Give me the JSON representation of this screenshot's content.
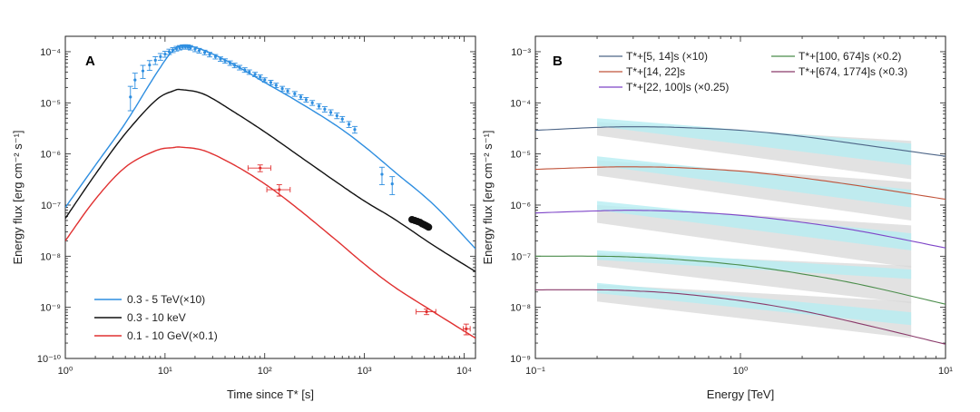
{
  "figure": {
    "panels": [
      "A",
      "B"
    ]
  },
  "chart_data": [
    {
      "type": "line",
      "panel_label": "A",
      "xlabel": "Time since T* [s]",
      "ylabel": "Energy flux [erg cm⁻² s⁻¹]",
      "x_scale": "log",
      "y_scale": "log",
      "xlim": [
        1,
        13000
      ],
      "ylim": [
        1e-10,
        0.0002
      ],
      "x_ticks": [
        {
          "v": 1,
          "label": "10⁰"
        },
        {
          "v": 10,
          "label": "10¹"
        },
        {
          "v": 100,
          "label": "10²"
        },
        {
          "v": 1000,
          "label": "10³"
        },
        {
          "v": 10000,
          "label": "10⁴"
        }
      ],
      "y_ticks": [
        {
          "v": 1e-10,
          "label": "10⁻¹⁰"
        },
        {
          "v": 1e-09,
          "label": "10⁻⁹"
        },
        {
          "v": 1e-08,
          "label": "10⁻⁸"
        },
        {
          "v": 1e-07,
          "label": "10⁻⁷"
        },
        {
          "v": 1e-06,
          "label": "10⁻⁶"
        },
        {
          "v": 1e-05,
          "label": "10⁻⁵"
        },
        {
          "v": 0.0001,
          "label": "10⁻⁴"
        }
      ],
      "legend_position": "bottom-left",
      "series": [
        {
          "name": "0.3 - 5  TeV(×10)",
          "color": "#2e8ee0",
          "x": [
            1,
            2,
            4,
            8,
            12,
            16,
            25,
            50,
            100,
            200,
            500,
            1000,
            2000,
            5000,
            13000
          ],
          "y": [
            9e-08,
            6e-07,
            4e-06,
            3.5e-05,
            0.000105,
            0.00013,
            0.000105,
            5.5e-05,
            2.5e-05,
            1.15e-05,
            3.8e-06,
            1.4e-06,
            4.5e-07,
            1e-07,
            1.4e-08
          ],
          "points": {
            "x": [
              4.5,
              5,
              6,
              7,
              8,
              9,
              10,
              11,
              12,
              13,
              14,
              15,
              16,
              17,
              18,
              20,
              22,
              25,
              28,
              32,
              36,
              40,
              45,
              50,
              56,
              63,
              70,
              80,
              90,
              100,
              115,
              130,
              150,
              170,
              200,
              230,
              260,
              300,
              350,
              400,
              460,
              530,
              600,
              700,
              800,
              1500,
              1900
            ],
            "y": [
              1.3e-05,
              2.8e-05,
              4.2e-05,
              5.5e-05,
              6.8e-05,
              8e-05,
              9e-05,
              0.0001,
              0.000108,
              0.000115,
              0.00012,
              0.000124,
              0.000125,
              0.000124,
              0.00012,
              0.000112,
              0.000105,
              9.7e-05,
              8.8e-05,
              8e-05,
              7.2e-05,
              6.6e-05,
              6e-05,
              5.4e-05,
              4.9e-05,
              4.4e-05,
              4e-05,
              3.6e-05,
              3.2e-05,
              2.8e-05,
              2.5e-05,
              2.2e-05,
              1.9e-05,
              1.7e-05,
              1.5e-05,
              1.3e-05,
              1.15e-05,
              1e-05,
              8.6e-06,
              7.5e-06,
              6.5e-06,
              5.6e-06,
              4.8e-06,
              3.8e-06,
              3e-06,
              4e-07,
              2.6e-07
            ],
            "err_lo": [
              6e-06,
              9e-06,
              1.2e-05,
              1.2e-05,
              1.2e-05,
              1.2e-05,
              1.2e-05,
              1.2e-05,
              1.2e-05,
              1.2e-05,
              1.2e-05,
              1.2e-05,
              1.2e-05,
              1.2e-05,
              1.2e-05,
              1.2e-05,
              1.1e-05,
              1e-05,
              9e-06,
              8e-06,
              7e-06,
              6.5e-06,
              6e-06,
              5.5e-06,
              5e-06,
              4.5e-06,
              4e-06,
              3.5e-06,
              3e-06,
              2.8e-06,
              2.5e-06,
              2.2e-06,
              2e-06,
              1.8e-06,
              1.6e-06,
              1.4e-06,
              1.2e-06,
              1.1e-06,
              1e-06,
              9e-07,
              8e-07,
              7e-07,
              6e-07,
              5e-07,
              4.5e-07,
              1.5e-07,
              1e-07
            ],
            "err_hi": [
              8e-06,
              1e-05,
              1.2e-05,
              1.2e-05,
              1.2e-05,
              1.2e-05,
              1.2e-05,
              1.2e-05,
              1.2e-05,
              1.2e-05,
              1.2e-05,
              1.2e-05,
              1.2e-05,
              1.2e-05,
              1.2e-05,
              1.2e-05,
              1.1e-05,
              1e-05,
              9e-06,
              8e-06,
              7e-06,
              6.5e-06,
              6e-06,
              5.5e-06,
              5e-06,
              4.5e-06,
              4e-06,
              3.5e-06,
              3e-06,
              2.8e-06,
              2.5e-06,
              2.2e-06,
              2e-06,
              1.8e-06,
              1.6e-06,
              1.4e-06,
              1.2e-06,
              1.1e-06,
              1e-06,
              9e-07,
              8e-07,
              7e-07,
              6e-07,
              5e-07,
              4.5e-07,
              1.5e-07,
              1e-07
            ]
          }
        },
        {
          "name": "0.3 - 10 keV",
          "color": "#111111",
          "x": [
            1,
            2,
            4,
            8,
            12,
            15,
            25,
            50,
            100,
            200,
            500,
            1000,
            2000,
            5000,
            13000
          ],
          "y": [
            5.5e-08,
            4e-07,
            2.5e-06,
            1.1e-05,
            1.7e-05,
            1.8e-05,
            1.45e-05,
            6.5e-06,
            2.7e-06,
            1.05e-06,
            3e-07,
            1.2e-07,
            5.3e-08,
            1.6e-08,
            5e-09
          ],
          "points": {
            "x": [
              3000,
              3200,
              3400,
              3600,
              3800,
              4000,
              4200,
              4400
            ],
            "y": [
              5.2e-08,
              5e-08,
              4.8e-08,
              4.6e-08,
              4.3e-08,
              4.1e-08,
              3.9e-08,
              3.7e-08
            ]
          }
        },
        {
          "name": "0.1 - 10 GeV(×0.1)",
          "color": "#e03030",
          "x": [
            1,
            2,
            4,
            8,
            12,
            15,
            25,
            50,
            100,
            200,
            500,
            1000,
            2000,
            5000,
            13000
          ],
          "y": [
            2e-08,
            1.3e-07,
            5.5e-07,
            1.15e-06,
            1.33e-06,
            1.35e-06,
            1.15e-06,
            6e-07,
            2.6e-07,
            9.5e-08,
            2.2e-08,
            7e-09,
            2.5e-09,
            8e-10,
            2.5e-10
          ],
          "points": {
            "x": [
              90,
              140,
              4200,
              10500
            ],
            "y": [
              5.3e-07,
              2e-07,
              8.2e-10,
              3.8e-10
            ],
            "x_lo": [
              68,
              105,
              3300,
              9800
            ],
            "x_hi": [
              115,
              180,
              5200,
              11500
            ],
            "err_lo": [
              8e-08,
              5e-08,
              1e-10,
              9e-11
            ],
            "err_hi": [
              8e-08,
              5e-08,
              1e-10,
              9e-11
            ]
          }
        }
      ]
    },
    {
      "type": "line",
      "panel_label": "B",
      "xlabel": "Energy [TeV]",
      "ylabel": "Energy flux [erg cm⁻² s⁻¹]",
      "x_scale": "log",
      "y_scale": "log",
      "xlim": [
        0.1,
        10
      ],
      "ylim": [
        1e-09,
        0.002
      ],
      "x_ticks": [
        {
          "v": 0.1,
          "label": "10⁻¹"
        },
        {
          "v": 1,
          "label": "10⁰"
        },
        {
          "v": 10,
          "label": "10¹"
        }
      ],
      "y_ticks": [
        {
          "v": 1e-09,
          "label": "10⁻⁹"
        },
        {
          "v": 1e-08,
          "label": "10⁻⁸"
        },
        {
          "v": 1e-07,
          "label": "10⁻⁷"
        },
        {
          "v": 1e-06,
          "label": "10⁻⁶"
        },
        {
          "v": 1e-05,
          "label": "10⁻⁵"
        },
        {
          "v": 0.0001,
          "label": "10⁻⁴"
        },
        {
          "v": 0.001,
          "label": "10⁻³"
        }
      ],
      "legend_position": "top",
      "series": [
        {
          "name": "T*+[5, 14]s (×10)",
          "color": "#4e6688",
          "x": [
            0.1,
            0.2,
            0.3,
            0.5,
            1,
            2,
            4,
            10
          ],
          "y": [
            2.9e-05,
            3.3e-05,
            3.4e-05,
            3.3e-05,
            2.9e-05,
            2.2e-05,
            1.5e-05,
            9e-06
          ],
          "band_x": [
            0.2,
            6.8
          ],
          "cyan_lo": [
            3.5e-05,
            6e-06
          ],
          "cyan_hi": [
            5e-05,
            1.6e-05
          ],
          "grey_lo": [
            2.3e-05,
            3.2e-06
          ],
          "grey_hi": [
            4.2e-05,
            1.8e-05
          ]
        },
        {
          "name": "T*+[14, 22]s",
          "color": "#c0533a",
          "x": [
            0.1,
            0.2,
            0.3,
            0.5,
            1,
            2,
            4,
            10
          ],
          "y": [
            5e-06,
            5.5e-06,
            5.6e-06,
            5.4e-06,
            4.6e-06,
            3.4e-06,
            2.3e-06,
            1.3e-06
          ],
          "band_x": [
            0.2,
            6.8
          ],
          "cyan_lo": [
            6e-06,
            9e-07
          ],
          "cyan_hi": [
            9e-06,
            2e-06
          ],
          "grey_lo": [
            3.8e-06,
            5e-07
          ],
          "grey_hi": [
            7.5e-06,
            2.8e-06
          ]
        },
        {
          "name": "T*+[22, 100]s (×0.25)",
          "color": "#7e45c8",
          "x": [
            0.1,
            0.2,
            0.3,
            0.5,
            1,
            2,
            4,
            10
          ],
          "y": [
            7e-07,
            7.7e-07,
            7.9e-07,
            7.5e-07,
            6.3e-07,
            4.6e-07,
            3e-07,
            1.45e-07
          ],
          "band_x": [
            0.2,
            6.8
          ],
          "cyan_lo": [
            8e-07,
            1.3e-07
          ],
          "cyan_hi": [
            1.2e-06,
            2.8e-07
          ],
          "grey_lo": [
            4.5e-07,
            6e-08
          ],
          "grey_hi": [
            1e-06,
            4e-07
          ]
        },
        {
          "name": "T*+[100, 674]s (×0.2)",
          "color": "#4a8c4a",
          "x": [
            0.1,
            0.2,
            0.3,
            0.5,
            1,
            2,
            4,
            10
          ],
          "y": [
            1e-07,
            1e-07,
            9.6e-08,
            8.6e-08,
            6.7e-08,
            4.5e-08,
            2.7e-08,
            1.15e-08
          ],
          "band_x": [
            0.2,
            6.8
          ],
          "cyan_lo": [
            8.5e-08,
            3.6e-08
          ],
          "cyan_hi": [
            1.3e-07,
            5.5e-08
          ],
          "grey_lo": [
            6.5e-08,
            1.2e-08
          ],
          "grey_hi": [
            1.15e-07,
            6.5e-08
          ]
        },
        {
          "name": "T*+[674, 1774]s (×0.3)",
          "color": "#8a3a6a",
          "x": [
            0.1,
            0.2,
            0.3,
            0.5,
            1,
            2,
            4,
            10
          ],
          "y": [
            2.2e-08,
            2.2e-08,
            2.1e-08,
            1.85e-08,
            1.35e-08,
            8.5e-09,
            4.6e-09,
            1.9e-09
          ],
          "band_x": [
            0.2,
            6.8
          ],
          "cyan_lo": [
            1.9e-08,
            4.5e-09
          ],
          "cyan_hi": [
            3e-08,
            8e-09
          ],
          "grey_lo": [
            1.3e-08,
            2.5e-09
          ],
          "grey_hi": [
            2.8e-08,
            1.3e-08
          ]
        }
      ]
    }
  ]
}
